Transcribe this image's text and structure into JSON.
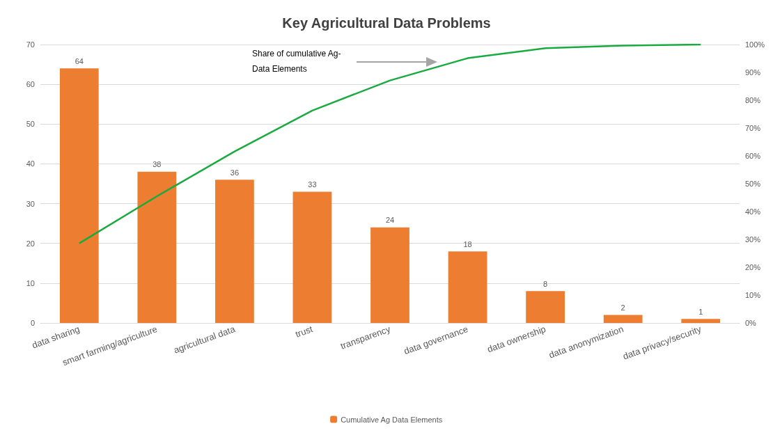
{
  "chart_data": {
    "type": "bar",
    "title": "Key Agricultural Data Problems",
    "categories": [
      "data sharing",
      "smart farming/agriculture",
      "agricultural data",
      "trust",
      "transparency",
      "data governance",
      "data ownership",
      "data anonymization",
      "data privacy/security"
    ],
    "series": [
      {
        "name": "Cumulative Ag Data Elements",
        "color": "#ed7d31",
        "values": [
          64,
          38,
          36,
          33,
          24,
          18,
          8,
          2,
          1
        ],
        "value_labels": [
          "64",
          "38",
          "36",
          "33",
          "24",
          "18",
          "8",
          "2",
          "1"
        ]
      },
      {
        "type": "line",
        "axis": "y2",
        "color": "#1aab40",
        "values": [
          28.6,
          45.5,
          61.6,
          76.3,
          87.1,
          95.1,
          98.7,
          99.6,
          100
        ]
      }
    ],
    "ylim": [
      0,
      70
    ],
    "yticks": [
      0,
      10,
      20,
      30,
      40,
      50,
      60,
      70
    ],
    "y2lim": [
      0,
      100
    ],
    "y2ticks": [
      {
        "value": 0,
        "label": "0%"
      },
      {
        "value": 10,
        "label": "10%"
      },
      {
        "value": 20,
        "label": "20%"
      },
      {
        "value": 30,
        "label": "30%"
      },
      {
        "value": 40,
        "label": "40%"
      },
      {
        "value": 50,
        "label": "50%"
      },
      {
        "value": 60,
        "label": "60%"
      },
      {
        "value": 70,
        "label": "70%"
      },
      {
        "value": 80,
        "label": "80%"
      },
      {
        "value": 90,
        "label": "90%"
      },
      {
        "value": 100,
        "label": "100%"
      }
    ],
    "annotations": [
      "Share of cumulative Ag-Data Elements"
    ],
    "grid": "y",
    "legend": "bottom",
    "marker": "none",
    "line_style": "solid"
  }
}
